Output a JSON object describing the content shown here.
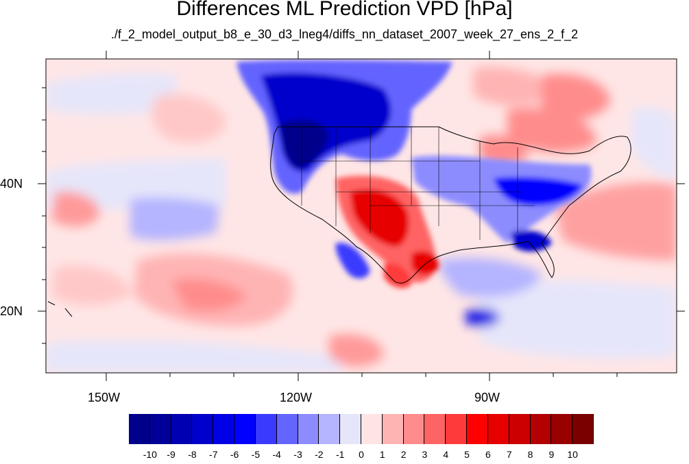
{
  "title": "Differences ML Prediction VPD [hPa]",
  "subtitle": "./f_2_model_output_b8_e_30_d3_lneg4/diffs_nn_dataset_2007_week_27_ens_2_f_2",
  "lat_labels": [
    "40N",
    "20N"
  ],
  "lon_labels": [
    "150W",
    "120W",
    "90W"
  ],
  "colorbar": {
    "labels": [
      "-10",
      "-9",
      "-8",
      "-7",
      "-6",
      "-5",
      "-4",
      "-3",
      "-2",
      "-1",
      "0",
      "1",
      "2",
      "3",
      "4",
      "5",
      "6",
      "7",
      "8",
      "9",
      "10"
    ],
    "colors": [
      "#00008b",
      "#000099",
      "#0000b3",
      "#0000cc",
      "#0000e6",
      "#0000ff",
      "#3a3aff",
      "#6464ff",
      "#8c8cff",
      "#b4b4ff",
      "#e6e6fa",
      "#ffe4e4",
      "#ffb4b4",
      "#ff8c8c",
      "#ff6464",
      "#ff3a3a",
      "#ff0000",
      "#e60000",
      "#cc0000",
      "#b30000",
      "#990000",
      "#7a0000"
    ]
  }
}
